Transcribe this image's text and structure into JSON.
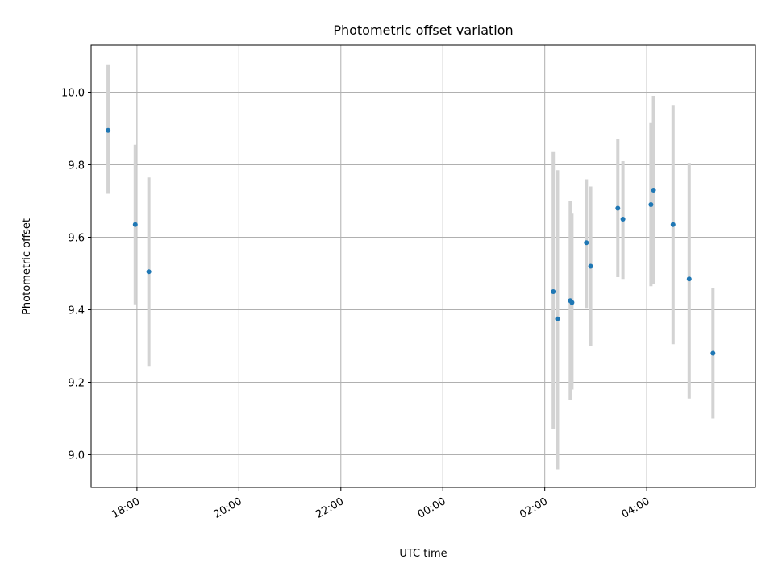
{
  "chart_data": {
    "type": "scatter",
    "title": "Photometric offset variation",
    "xlabel": "UTC time",
    "ylabel": "Photometric offset",
    "x_tick_labels": [
      "18:00",
      "20:00",
      "22:00",
      "00:00",
      "02:00",
      "04:00"
    ],
    "y_tick_labels": [
      "9.0",
      "9.2",
      "9.4",
      "9.6",
      "9.8",
      "10.0"
    ],
    "ylim": [
      8.91,
      10.13
    ],
    "xlim": [
      "17:06",
      "06:08"
    ],
    "grid": true,
    "colors": {
      "points": "#1f77b4",
      "errorbars": "#d3d3d3",
      "grid": "#b0b0b0"
    },
    "series": [
      {
        "points": [
          {
            "x": "17:26",
            "y": 9.895,
            "yerr_low": 9.72,
            "yerr_high": 10.075
          },
          {
            "x": "17:58",
            "y": 9.635,
            "yerr_low": 9.415,
            "yerr_high": 9.855
          },
          {
            "x": "18:14",
            "y": 9.505,
            "yerr_low": 9.245,
            "yerr_high": 9.765
          },
          {
            "x": "02:10",
            "y": 9.45,
            "yerr_low": 9.07,
            "yerr_high": 9.835
          },
          {
            "x": "02:15",
            "y": 9.375,
            "yerr_low": 8.96,
            "yerr_high": 9.785
          },
          {
            "x": "02:30",
            "y": 9.425,
            "yerr_low": 9.15,
            "yerr_high": 9.7
          },
          {
            "x": "02:32",
            "y": 9.42,
            "yerr_low": 9.18,
            "yerr_high": 9.665
          },
          {
            "x": "02:49",
            "y": 9.585,
            "yerr_low": 9.405,
            "yerr_high": 9.76
          },
          {
            "x": "02:54",
            "y": 9.52,
            "yerr_low": 9.3,
            "yerr_high": 9.74
          },
          {
            "x": "03:26",
            "y": 9.68,
            "yerr_low": 9.49,
            "yerr_high": 9.87
          },
          {
            "x": "03:32",
            "y": 9.65,
            "yerr_low": 9.485,
            "yerr_high": 9.81
          },
          {
            "x": "04:05",
            "y": 9.69,
            "yerr_low": 9.465,
            "yerr_high": 9.915
          },
          {
            "x": "04:08",
            "y": 9.73,
            "yerr_low": 9.47,
            "yerr_high": 9.99
          },
          {
            "x": "04:31",
            "y": 9.635,
            "yerr_low": 9.305,
            "yerr_high": 9.965
          },
          {
            "x": "04:50",
            "y": 9.485,
            "yerr_low": 9.155,
            "yerr_high": 9.805
          },
          {
            "x": "05:18",
            "y": 9.28,
            "yerr_low": 9.1,
            "yerr_high": 9.46
          }
        ]
      }
    ]
  }
}
